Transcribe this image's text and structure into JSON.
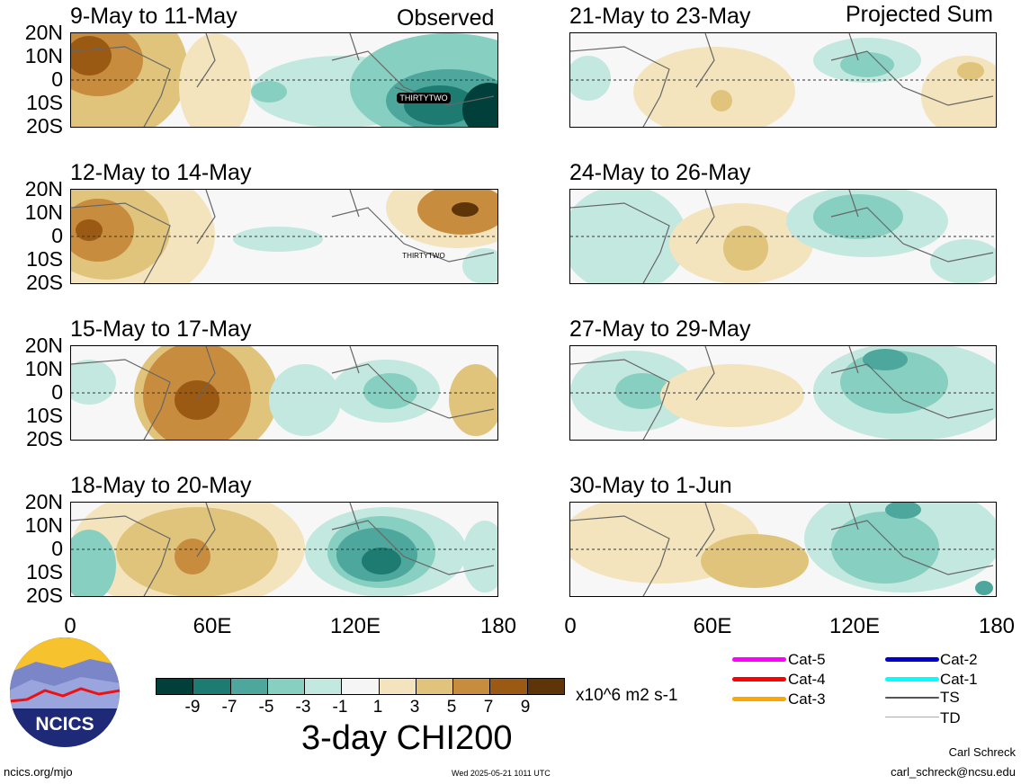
{
  "headers": {
    "left": "Observed",
    "right": "Projected Sum"
  },
  "lat_labels": [
    "20N",
    "10N",
    "0",
    "10S",
    "20S"
  ],
  "lon_labels": [
    "0",
    "60E",
    "120E",
    "180"
  ],
  "panels_left": [
    {
      "title": "9-May to 11-May",
      "storm": "THIRTYTWO"
    },
    {
      "title": "12-May to 14-May",
      "storm": "THIRTYTWO"
    },
    {
      "title": "15-May to 17-May",
      "storm": ""
    },
    {
      "title": "18-May to 20-May",
      "storm": ""
    }
  ],
  "panels_right": [
    {
      "title": "21-May to 23-May"
    },
    {
      "title": "24-May to 26-May"
    },
    {
      "title": "27-May to 29-May"
    },
    {
      "title": "30-May to 1-Jun"
    }
  ],
  "colorbar": {
    "ticks": [
      "-9",
      "-7",
      "-5",
      "-3",
      "-1",
      "1",
      "3",
      "5",
      "7",
      "9"
    ],
    "colors": [
      "#01403a",
      "#1d7b72",
      "#4da79c",
      "#86cfc1",
      "#c3e8df",
      "#f5f5f5",
      "#f3e4bd",
      "#e0c47c",
      "#c88c3e",
      "#9b5a14",
      "#5d3508"
    ],
    "units": "x10^6 m2 s-1",
    "title": "3-day CHI200"
  },
  "legend": [
    {
      "label": "Cat-5",
      "color": "#ff00ff"
    },
    {
      "label": "Cat-4",
      "color": "#ff0000"
    },
    {
      "label": "Cat-3",
      "color": "#ffa500"
    },
    {
      "label": "Cat-2",
      "color": "#0000cc"
    },
    {
      "label": "Cat-1",
      "color": "#00ffff"
    },
    {
      "label": "TS",
      "color": "#555555"
    },
    {
      "label": "TD",
      "color": "#aaaaaa"
    }
  ],
  "logo": {
    "text": "NCICS"
  },
  "footer": {
    "url": "ncics.org/mjo",
    "timestamp": "Wed 2025-05-21 1011 UTC",
    "author": "Carl Schreck",
    "email": "carl_schreck@ncsu.edu"
  }
}
